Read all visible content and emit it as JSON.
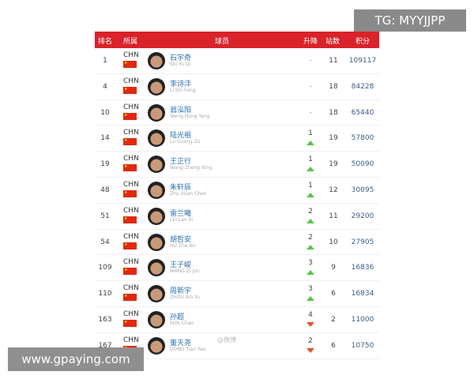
{
  "header": {
    "rank": "排名",
    "country": "所属",
    "player": "球员",
    "change": "升降",
    "matches": "站数",
    "points": "积分"
  },
  "rows": [
    {
      "rank": "1",
      "country": "CHN",
      "cn": "石宇奇",
      "en": "Shi Yu Qi",
      "change": "-",
      "dir": "none",
      "matches": "11",
      "points": "109117"
    },
    {
      "rank": "4",
      "country": "CHN",
      "cn": "李诗沣",
      "en": "Li Shi Feng",
      "change": "-",
      "dir": "none",
      "matches": "18",
      "points": "84228"
    },
    {
      "rank": "10",
      "country": "CHN",
      "cn": "翁泓阳",
      "en": "Weng Hong Yang",
      "change": "-",
      "dir": "none",
      "matches": "18",
      "points": "65440"
    },
    {
      "rank": "14",
      "country": "CHN",
      "cn": "陆光祖",
      "en": "Lu Guang Zu",
      "change": "1",
      "dir": "up",
      "matches": "19",
      "points": "57800"
    },
    {
      "rank": "19",
      "country": "CHN",
      "cn": "王正行",
      "en": "Wang Zheng Xing",
      "change": "1",
      "dir": "up",
      "matches": "19",
      "points": "50090"
    },
    {
      "rank": "48",
      "country": "CHN",
      "cn": "朱轩辰",
      "en": "Zhu Xuan Chen",
      "change": "1",
      "dir": "up",
      "matches": "12",
      "points": "30095"
    },
    {
      "rank": "51",
      "country": "CHN",
      "cn": "雷兰曦",
      "en": "LEI Lan Xi",
      "change": "2",
      "dir": "up",
      "matches": "11",
      "points": "29200"
    },
    {
      "rank": "54",
      "country": "CHN",
      "cn": "胡哲安",
      "en": "HU Zhe An",
      "change": "2",
      "dir": "up",
      "matches": "10",
      "points": "27905"
    },
    {
      "rank": "109",
      "country": "CHN",
      "cn": "王子峻",
      "en": "WANG Zi Jun",
      "change": "3",
      "dir": "up",
      "matches": "9",
      "points": "16836"
    },
    {
      "rank": "110",
      "country": "CHN",
      "cn": "周新宇",
      "en": "ZHOU Xin Yu",
      "change": "3",
      "dir": "up",
      "matches": "6",
      "points": "16834"
    },
    {
      "rank": "163",
      "country": "CHN",
      "cn": "孙超",
      "en": "SUN Chao",
      "change": "4",
      "dir": "down",
      "matches": "2",
      "points": "11000"
    },
    {
      "rank": "167",
      "country": "CHN",
      "cn": "董天尧",
      "en": "DONG Tian Yao",
      "change": "2",
      "dir": "down",
      "matches": "6",
      "points": "10750"
    }
  ],
  "overlay": {
    "tg": "TG: MYYJJPP",
    "site": "www.gpaying.com",
    "weibo": "@微博"
  },
  "colors": {
    "header": "#d9222a",
    "up": "#5cc24a",
    "down": "#e8522c"
  }
}
